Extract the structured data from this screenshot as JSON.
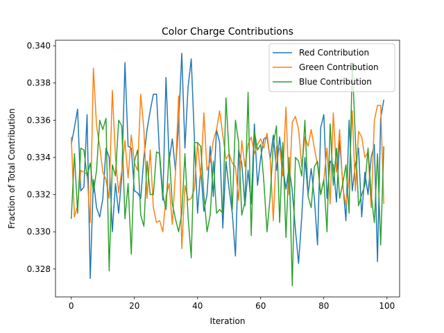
{
  "chart_data": {
    "type": "line",
    "title": "Color Charge Contributions",
    "xlabel": "Iteration",
    "ylabel": "Fraction of Total Contribution",
    "xlim": [
      -5,
      104
    ],
    "ylim": [
      0.3265,
      0.3403
    ],
    "xticks": [
      0,
      20,
      40,
      60,
      80,
      100
    ],
    "yticks": [
      0.328,
      0.33,
      0.332,
      0.334,
      0.336,
      0.338,
      0.34
    ],
    "ytick_labels": [
      "0.328",
      "0.330",
      "0.332",
      "0.334",
      "0.336",
      "0.338",
      "0.340"
    ],
    "grid": false,
    "legend": "top-right",
    "x": [
      0,
      1,
      2,
      3,
      4,
      5,
      6,
      7,
      8,
      9,
      10,
      11,
      12,
      13,
      14,
      15,
      16,
      17,
      18,
      19,
      20,
      21,
      22,
      23,
      24,
      25,
      26,
      27,
      28,
      29,
      30,
      31,
      32,
      33,
      34,
      35,
      36,
      37,
      38,
      39,
      40,
      41,
      42,
      43,
      44,
      45,
      46,
      47,
      48,
      49,
      50,
      51,
      52,
      53,
      54,
      55,
      56,
      57,
      58,
      59,
      60,
      61,
      62,
      63,
      64,
      65,
      66,
      67,
      68,
      69,
      70,
      71,
      72,
      73,
      74,
      75,
      76,
      77,
      78,
      79,
      80,
      81,
      82,
      83,
      84,
      85,
      86,
      87,
      88,
      89,
      90,
      91,
      92,
      93,
      94,
      95,
      96,
      97,
      98,
      99
    ],
    "series": [
      {
        "name": "Red Contribution",
        "color": "#1f77b4",
        "values": [
          0.3347,
          0.3356,
          0.3366,
          0.3322,
          0.3324,
          0.3363,
          0.3275,
          0.3328,
          0.3313,
          0.3308,
          0.3318,
          0.3345,
          0.334,
          0.33,
          0.3326,
          0.331,
          0.333,
          0.3391,
          0.3346,
          0.3345,
          0.3322,
          0.3321,
          0.3318,
          0.334,
          0.3355,
          0.3365,
          0.3374,
          0.3374,
          0.334,
          0.3317,
          0.3383,
          0.3338,
          0.335,
          0.3333,
          0.3358,
          0.3396,
          0.3345,
          0.3378,
          0.3393,
          0.335,
          0.331,
          0.3334,
          0.3311,
          0.332,
          0.3346,
          0.3319,
          0.3355,
          0.3348,
          0.3302,
          0.3338,
          0.3323,
          0.331,
          0.3287,
          0.3344,
          0.3337,
          0.3314,
          0.3333,
          0.3315,
          0.3358,
          0.3325,
          0.334,
          0.335,
          0.3351,
          0.3339,
          0.3352,
          0.3333,
          0.3351,
          0.3335,
          0.3323,
          0.3335,
          0.3322,
          0.3301,
          0.3283,
          0.3308,
          0.334,
          0.332,
          0.3334,
          0.3318,
          0.3293,
          0.3356,
          0.3363,
          0.3318,
          0.3338,
          0.3336,
          0.3316,
          0.3349,
          0.3326,
          0.3306,
          0.336,
          0.3322,
          0.3336,
          0.3345,
          0.3308,
          0.3332,
          0.332,
          0.334,
          0.3347,
          0.3284,
          0.3361,
          0.3371
        ]
      },
      {
        "name": "Green Contribution",
        "color": "#ff7f0e",
        "values": [
          0.3351,
          0.3308,
          0.3314,
          0.3333,
          0.3332,
          0.3331,
          0.3305,
          0.3388,
          0.3357,
          0.3346,
          0.3332,
          0.3328,
          0.3318,
          0.3376,
          0.334,
          0.3321,
          0.3333,
          0.3349,
          0.3329,
          0.3352,
          0.3337,
          0.3333,
          0.3374,
          0.3355,
          0.3318,
          0.3344,
          0.3313,
          0.3305,
          0.3306,
          0.33,
          0.3319,
          0.3326,
          0.3304,
          0.3332,
          0.3373,
          0.3291,
          0.3325,
          0.3317,
          0.3318,
          0.3323,
          0.3348,
          0.3329,
          0.3364,
          0.3333,
          0.3338,
          0.3349,
          0.3355,
          0.3365,
          0.3352,
          0.3339,
          0.3342,
          0.3337,
          0.3335,
          0.3317,
          0.3349,
          0.3335,
          0.3347,
          0.3351,
          0.3342,
          0.3347,
          0.335,
          0.3345,
          0.3353,
          0.3339,
          0.3306,
          0.3346,
          0.3345,
          0.333,
          0.3367,
          0.332,
          0.3359,
          0.3362,
          0.3355,
          0.3335,
          0.3351,
          0.3346,
          0.3355,
          0.3345,
          0.3336,
          0.332,
          0.3328,
          0.3345,
          0.3315,
          0.3364,
          0.3332,
          0.3355,
          0.3324,
          0.3314,
          0.3329,
          0.3365,
          0.3322,
          0.3354,
          0.3351,
          0.334,
          0.3343,
          0.3313,
          0.336,
          0.3368,
          0.3368,
          0.3315
        ]
      },
      {
        "name": "Blue Contribution",
        "color": "#2ca02c",
        "values": [
          0.3307,
          0.3342,
          0.331,
          0.3345,
          0.3344,
          0.333,
          0.3337,
          0.3321,
          0.3333,
          0.336,
          0.3355,
          0.3361,
          0.3279,
          0.3336,
          0.333,
          0.336,
          0.3357,
          0.3307,
          0.3326,
          0.3288,
          0.3338,
          0.3344,
          0.3309,
          0.3303,
          0.3338,
          0.332,
          0.332,
          0.3343,
          0.3342,
          0.332,
          0.3312,
          0.3343,
          0.3315,
          0.3307,
          0.33,
          0.331,
          0.3342,
          0.3308,
          0.3286,
          0.3348,
          0.3348,
          0.3346,
          0.332,
          0.33,
          0.3309,
          0.3338,
          0.331,
          0.3312,
          0.331,
          0.3372,
          0.3342,
          0.3312,
          0.336,
          0.3348,
          0.3309,
          0.3316,
          0.3375,
          0.3298,
          0.3354,
          0.3344,
          0.3347,
          0.3327,
          0.33,
          0.3319,
          0.3347,
          0.3357,
          0.3305,
          0.3348,
          0.3297,
          0.334,
          0.3271,
          0.334,
          0.3338,
          0.333,
          0.336,
          0.3319,
          0.3313,
          0.3335,
          0.3338,
          0.332,
          0.3328,
          0.33,
          0.3358,
          0.3325,
          0.3345,
          0.3318,
          0.3326,
          0.3336,
          0.331,
          0.3391,
          0.335,
          0.3314,
          0.332,
          0.3325,
          0.3345,
          0.332,
          0.3305,
          0.3342,
          0.3293,
          0.3346
        ]
      }
    ]
  }
}
